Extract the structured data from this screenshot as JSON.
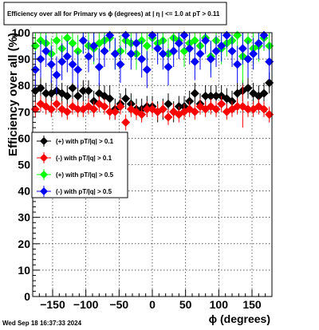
{
  "title": "Efficiency over all for Primary vs ϕ (degrees) at |  η | <= 1.0 at pT > 0.11",
  "footer_timestamp": "Wed Sep 18 16:37:33 2024",
  "chart_data": {
    "type": "scatter",
    "title": "Efficiency over all for Primary vs ϕ (degrees) at |  η | <= 1.0 at pT > 0.11",
    "xlabel": "ϕ (degrees)",
    "ylabel": "Efficiency over all (%)",
    "xlim": [
      -180,
      180
    ],
    "ylim": [
      0,
      100
    ],
    "x_ticks": [
      -150,
      -100,
      -50,
      0,
      50,
      100,
      150
    ],
    "x_tick_labels": [
      "−150",
      "−100",
      "−50",
      "0",
      "50",
      "100",
      "150"
    ],
    "y_ticks": [
      0,
      10,
      20,
      30,
      40,
      50,
      60,
      70,
      80,
      90,
      100
    ],
    "y_tick_labels": [
      "0",
      "10",
      "20",
      "30",
      "40",
      "50",
      "60",
      "70",
      "80",
      "90",
      "100"
    ],
    "grid": true,
    "legend_position": "left-middle",
    "marker": "diamond",
    "series": [
      {
        "name": "(+) with pT/|q| > 0.1",
        "color": "#000000",
        "x": [
          -176,
          -168,
          -160,
          -152,
          -144,
          -136,
          -128,
          -120,
          -112,
          -104,
          -96,
          -88,
          -80,
          -72,
          -64,
          -56,
          -48,
          -40,
          -32,
          -24,
          -16,
          -8,
          0,
          8,
          16,
          24,
          32,
          40,
          48,
          56,
          64,
          72,
          80,
          88,
          96,
          104,
          112,
          120,
          128,
          136,
          144,
          152,
          160,
          168,
          176
        ],
        "y": [
          78,
          79,
          77,
          77,
          78,
          77,
          76,
          79,
          76,
          78,
          78,
          74,
          77,
          76,
          75,
          71,
          73,
          75,
          73,
          71,
          71,
          72,
          72,
          70,
          71,
          73,
          70,
          72,
          72,
          74,
          77,
          73,
          76,
          76,
          76,
          76,
          75,
          74,
          77,
          78,
          79,
          77,
          76,
          77,
          81
        ],
        "err": [
          4,
          4,
          4,
          5,
          4,
          4,
          4,
          5,
          4,
          4,
          4,
          4,
          4,
          4,
          5,
          4,
          4,
          4,
          4,
          4,
          4,
          4,
          4,
          4,
          4,
          4,
          4,
          4,
          4,
          4,
          4,
          4,
          4,
          4,
          4,
          4,
          4,
          4,
          4,
          4,
          4,
          4,
          4,
          4,
          4
        ]
      },
      {
        "name": "(-) with pT/|q| > 0.1",
        "color": "#ff0000",
        "x": [
          -176,
          -168,
          -160,
          -152,
          -144,
          -136,
          -128,
          -120,
          -112,
          -104,
          -96,
          -88,
          -80,
          -72,
          -64,
          -56,
          -48,
          -40,
          -32,
          -24,
          -16,
          -8,
          0,
          8,
          16,
          24,
          32,
          40,
          48,
          56,
          64,
          72,
          80,
          88,
          96,
          104,
          112,
          120,
          128,
          136,
          144,
          152,
          160,
          168,
          176
        ],
        "y": [
          71,
          73,
          72,
          71,
          73,
          71,
          70,
          72,
          71,
          71,
          72,
          71,
          73,
          72,
          70,
          70,
          72,
          66,
          71,
          70,
          69,
          71,
          71,
          70,
          71,
          68,
          70,
          69,
          70,
          71,
          70,
          72,
          71,
          72,
          71,
          73,
          70,
          71,
          72,
          72,
          71,
          71,
          72,
          71,
          69
        ],
        "err": [
          3,
          3,
          3,
          3,
          3,
          3,
          3,
          3,
          3,
          3,
          3,
          3,
          3,
          3,
          3,
          3,
          3,
          3,
          3,
          3,
          3,
          3,
          3,
          3,
          3,
          3,
          3,
          3,
          3,
          3,
          3,
          3,
          3,
          3,
          3,
          3,
          3,
          3,
          3,
          8,
          3,
          3,
          3,
          3,
          3
        ]
      },
      {
        "name": "(+) with pT/|q| > 0.5",
        "color": "#00ff00",
        "x": [
          -176,
          -168,
          -160,
          -152,
          -144,
          -136,
          -128,
          -120,
          -112,
          -104,
          -96,
          -88,
          -80,
          -72,
          -64,
          -56,
          -48,
          -40,
          -32,
          -24,
          -16,
          -8,
          0,
          8,
          16,
          24,
          32,
          40,
          48,
          56,
          64,
          72,
          80,
          88,
          96,
          104,
          112,
          120,
          128,
          136,
          144,
          152,
          160,
          168,
          176
        ],
        "y": [
          95,
          97,
          96,
          92,
          97,
          94,
          98,
          96,
          93,
          97,
          95,
          94,
          96,
          97,
          98,
          92,
          93,
          97,
          96,
          92,
          97,
          95,
          98,
          96,
          97,
          92,
          98,
          97,
          93,
          96,
          97,
          95,
          98,
          91,
          97,
          94,
          96,
          97,
          99,
          91,
          97,
          94,
          95,
          98,
          95
        ],
        "err": [
          5,
          5,
          5,
          6,
          5,
          5,
          5,
          5,
          6,
          5,
          5,
          6,
          5,
          5,
          5,
          6,
          6,
          5,
          5,
          6,
          5,
          6,
          5,
          5,
          5,
          6,
          5,
          5,
          6,
          5,
          5,
          6,
          5,
          6,
          5,
          6,
          5,
          5,
          5,
          10,
          5,
          6,
          6,
          5,
          6
        ]
      },
      {
        "name": "(-) with pT/|q| > 0.5",
        "color": "#0000ff",
        "x": [
          -176,
          -168,
          -160,
          -152,
          -144,
          -136,
          -128,
          -120,
          -112,
          -104,
          -96,
          -88,
          -80,
          -72,
          -64,
          -56,
          -48,
          -40,
          -32,
          -24,
          -16,
          -8,
          0,
          8,
          16,
          24,
          32,
          40,
          48,
          56,
          64,
          72,
          80,
          88,
          96,
          104,
          112,
          120,
          128,
          136,
          144,
          152,
          160,
          168,
          176
        ],
        "y": [
          86,
          90,
          93,
          88,
          84,
          89,
          91,
          88,
          86,
          97,
          91,
          95,
          87,
          93,
          99,
          92,
          88,
          99,
          92,
          96,
          90,
          86,
          99,
          94,
          92,
          87,
          93,
          96,
          99,
          94,
          89,
          92,
          97,
          90,
          93,
          95,
          99,
          93,
          88,
          94,
          90,
          92,
          96,
          99,
          89
        ],
        "err": [
          7,
          7,
          6,
          7,
          7,
          7,
          6,
          7,
          7,
          5,
          6,
          6,
          7,
          6,
          5,
          6,
          7,
          5,
          6,
          6,
          7,
          7,
          5,
          6,
          6,
          7,
          6,
          6,
          5,
          6,
          7,
          6,
          5,
          7,
          6,
          6,
          5,
          6,
          7,
          6,
          7,
          6,
          6,
          5,
          7
        ]
      }
    ]
  }
}
